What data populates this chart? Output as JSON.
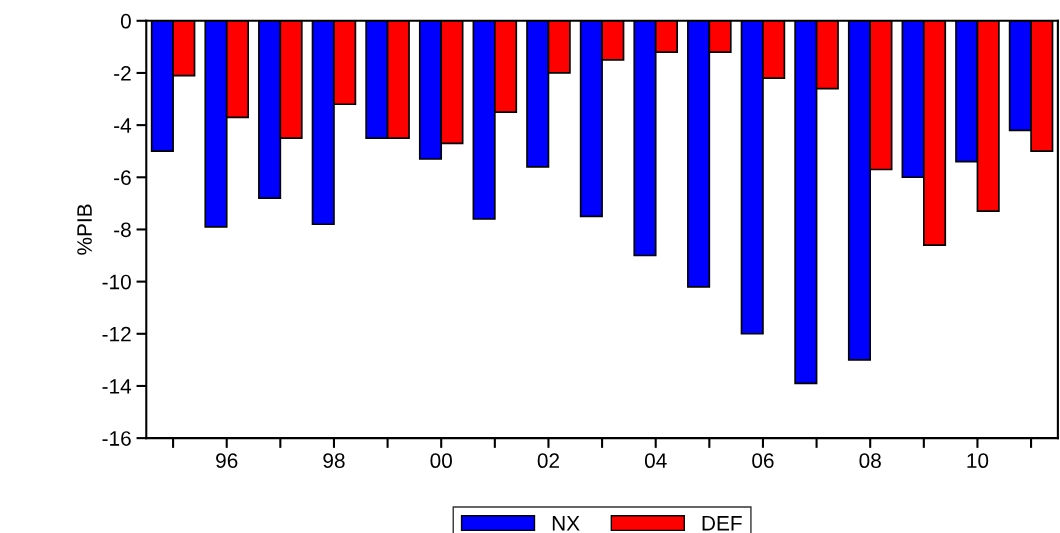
{
  "chart_data": {
    "type": "bar",
    "categories": [
      null,
      "96",
      null,
      "98",
      null,
      "00",
      null,
      "02",
      null,
      "04",
      null,
      "06",
      null,
      "08",
      null,
      "10",
      null
    ],
    "series": [
      {
        "name": "NX",
        "color": "#0000ff",
        "values": [
          -5.0,
          -7.9,
          -6.8,
          -7.8,
          -4.5,
          -5.3,
          -7.6,
          -5.6,
          -7.5,
          -9.0,
          -10.2,
          -12.0,
          -13.9,
          -13.0,
          -6.0,
          -5.4,
          -4.2
        ]
      },
      {
        "name": "DEF",
        "color": "#ff0000",
        "values": [
          -2.1,
          -3.7,
          -4.5,
          -3.2,
          -4.5,
          -4.7,
          -3.5,
          -2.0,
          -1.5,
          -1.2,
          -1.2,
          -2.2,
          -2.6,
          -5.7,
          -8.6,
          -7.3,
          -5.0
        ]
      }
    ],
    "ylabel": "%PIB",
    "ylim": [
      -16,
      0
    ],
    "yticks": [
      -16,
      -14,
      -12,
      -10,
      -8,
      -6,
      -4,
      -2,
      0
    ],
    "grid": false,
    "legend": "bottom"
  }
}
